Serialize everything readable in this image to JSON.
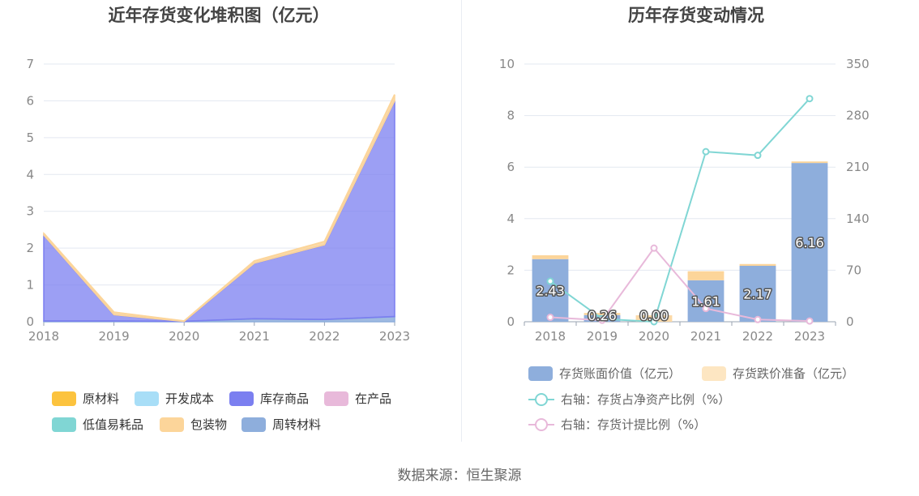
{
  "source": "数据来源：恒生聚源",
  "chart_data": [
    {
      "type": "area",
      "title": "近年存货变化堆积图（亿元）",
      "x": [
        "2018",
        "2019",
        "2020",
        "2021",
        "2022",
        "2023"
      ],
      "ylim": [
        0,
        7
      ],
      "yticks": [
        "0",
        "1",
        "2",
        "3",
        "4",
        "5",
        "6",
        "7"
      ],
      "stacked": true,
      "grid": true,
      "legend_position": "bottom",
      "series": [
        {
          "name": "原材料",
          "color": "#fcc33e",
          "values": [
            0,
            0,
            0,
            0,
            0,
            0
          ]
        },
        {
          "name": "开发成本",
          "color": "#a8def7",
          "values": [
            0,
            0,
            0,
            0,
            0,
            0
          ]
        },
        {
          "name": "周转材料",
          "color": "#8eaedc",
          "values": [
            0.02,
            0.02,
            0.01,
            0.08,
            0.06,
            0.14
          ]
        },
        {
          "name": "低值易耗品",
          "color": "#80d6d4",
          "values": [
            0,
            0,
            0,
            0,
            0,
            0
          ]
        },
        {
          "name": "在产品",
          "color": "#e8b9da",
          "values": [
            0,
            0,
            0,
            0,
            0,
            0
          ]
        },
        {
          "name": "库存商品",
          "color": "#7b7ff0",
          "values": [
            2.33,
            0.17,
            0,
            1.51,
            2.03,
            5.86
          ]
        },
        {
          "name": "包装物",
          "color": "#fcd59a",
          "values": [
            0.05,
            0.07,
            0.01,
            0.06,
            0.09,
            0.17
          ]
        }
      ],
      "legend": [
        {
          "name": "原材料",
          "color": "#fcc33e"
        },
        {
          "name": "开发成本",
          "color": "#a8def7"
        },
        {
          "name": "库存商品",
          "color": "#7b7ff0"
        },
        {
          "name": "在产品",
          "color": "#e8b9da"
        },
        {
          "name": "低值易耗品",
          "color": "#80d6d4"
        },
        {
          "name": "包装物",
          "color": "#fcd59a"
        },
        {
          "name": "周转材料",
          "color": "#8eaedc"
        }
      ]
    },
    {
      "type": "bar",
      "title": "历年存货变动情况",
      "categories": [
        "2018",
        "2019",
        "2020",
        "2021",
        "2022",
        "2023"
      ],
      "ylim": [
        0,
        10
      ],
      "yticks": [
        "0",
        "2",
        "4",
        "6",
        "8",
        "10"
      ],
      "y2lim": [
        0,
        350
      ],
      "y2ticks": [
        "0",
        "70",
        "140",
        "210",
        "280",
        "350"
      ],
      "grid": true,
      "legend_position": "bottom",
      "bar_series": [
        {
          "name": "存货账面价值（亿元）",
          "color": "#8eaedc",
          "values": [
            2.43,
            0.26,
            0.0,
            1.61,
            2.17,
            6.16
          ],
          "labels": [
            "2.43",
            "0.26",
            "0.00",
            "1.61",
            "2.17",
            "6.16"
          ]
        },
        {
          "name": "存货跌价准备（亿元）",
          "color": "#fde6c2",
          "legend_color": "#fde6c2",
          "values": [
            0.15,
            0.08,
            0.25,
            0.35,
            0.07,
            0.06
          ]
        }
      ],
      "line_series": [
        {
          "name": "右轴：存货占净资产比例（%）",
          "color": "#80d6d4",
          "axis": "right",
          "values": [
            55,
            4,
            0,
            231,
            226,
            303
          ]
        },
        {
          "name": "右轴：存货计提比例（%）",
          "color": "#e8b9da",
          "axis": "right",
          "values": [
            6,
            2,
            100,
            18,
            3,
            1
          ]
        }
      ]
    }
  ]
}
